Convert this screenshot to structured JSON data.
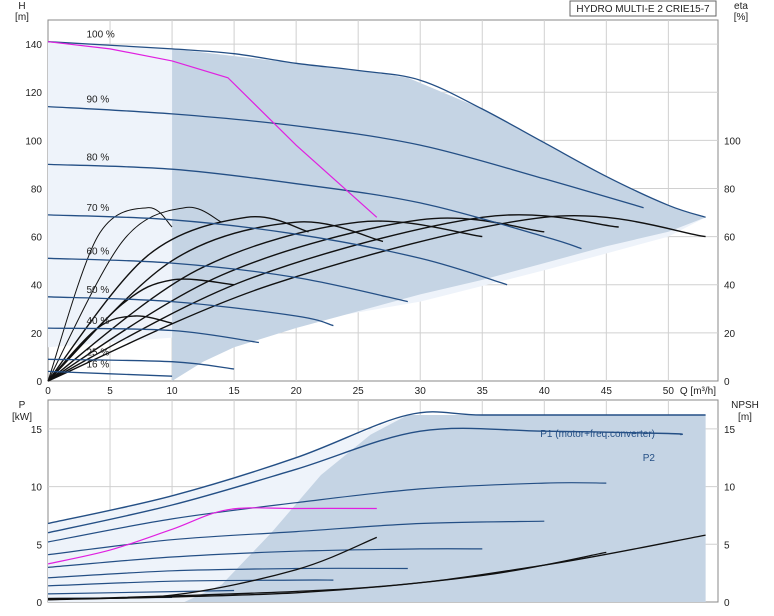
{
  "chart_data": [
    {
      "type": "line",
      "title": "HYDRO MULTI-E 2 CRIE15-7",
      "xlabel": "Q [m³/h]",
      "ylabel": "H",
      "ylabel_unit": "[m]",
      "y2label": "eta",
      "y2label_unit": "[%]",
      "xlim": [
        0,
        54
      ],
      "ylim": [
        0,
        150
      ],
      "y2lim": [
        0,
        150
      ],
      "x_ticks": [
        "0",
        "5",
        "10",
        "15",
        "20",
        "25",
        "30",
        "35",
        "40",
        "45",
        "50"
      ],
      "y_ticks": [
        "0",
        "20",
        "40",
        "60",
        "80",
        "100",
        "120",
        "140"
      ],
      "y2_ticks": [
        "0",
        "20",
        "40",
        "60",
        "80",
        "100"
      ],
      "grid": true,
      "speed_labels": [
        "100 %",
        "90 %",
        "80 %",
        "70 %",
        "60 %",
        "50 %",
        "40 %",
        "25 %",
        "16 %"
      ],
      "series": [
        {
          "name": "100 %",
          "x": [
            0,
            10,
            15,
            20,
            25,
            30,
            35,
            40,
            45,
            50,
            53
          ],
          "y": [
            141,
            138,
            136,
            132,
            129,
            125,
            113,
            99,
            85,
            73,
            68
          ]
        },
        {
          "name": "90 %",
          "x": [
            0,
            10,
            20,
            30,
            40,
            48
          ],
          "y": [
            114,
            111,
            106,
            98,
            84,
            72
          ]
        },
        {
          "name": "80 %",
          "x": [
            0,
            10,
            20,
            30,
            40,
            43
          ],
          "y": [
            90,
            88,
            82,
            74,
            60,
            55
          ]
        },
        {
          "name": "70 %",
          "x": [
            0,
            10,
            20,
            30,
            37
          ],
          "y": [
            69,
            67,
            61,
            51,
            40
          ]
        },
        {
          "name": "60 %",
          "x": [
            0,
            10,
            20,
            29
          ],
          "y": [
            51,
            49,
            43,
            33
          ]
        },
        {
          "name": "50 %",
          "x": [
            0,
            10,
            20,
            23
          ],
          "y": [
            35,
            33,
            27,
            23
          ]
        },
        {
          "name": "40 %",
          "x": [
            0,
            10,
            17
          ],
          "y": [
            22,
            21,
            16
          ]
        },
        {
          "name": "25 %",
          "x": [
            0,
            10,
            15
          ],
          "y": [
            9,
            8,
            5
          ]
        },
        {
          "name": "16 %",
          "x": [
            0,
            10
          ],
          "y": [
            4,
            2
          ]
        }
      ],
      "duty_line": {
        "x": [
          0,
          5,
          10,
          14.5,
          20,
          26.5
        ],
        "y": [
          141,
          138,
          133,
          126,
          98,
          68
        ]
      },
      "eta_curves": [
        {
          "x": [
            0,
            4,
            8,
            10
          ],
          "y": [
            0,
            60,
            72,
            64
          ]
        },
        {
          "x": [
            0,
            6,
            11,
            14
          ],
          "y": [
            0,
            58,
            72,
            66
          ]
        },
        {
          "x": [
            0,
            8,
            16,
            21
          ],
          "y": [
            0,
            52,
            68,
            62
          ]
        },
        {
          "x": [
            0,
            10,
            20,
            27
          ],
          "y": [
            0,
            50,
            66,
            58
          ]
        },
        {
          "x": [
            0,
            12,
            25,
            35
          ],
          "y": [
            0,
            46,
            66,
            60
          ]
        },
        {
          "x": [
            0,
            14,
            30,
            40
          ],
          "y": [
            0,
            44,
            67,
            62
          ]
        },
        {
          "x": [
            0,
            16,
            35,
            46
          ],
          "y": [
            0,
            42,
            68,
            64
          ]
        },
        {
          "x": [
            0,
            18,
            40,
            53
          ],
          "y": [
            0,
            40,
            68,
            60
          ]
        },
        {
          "x": [
            0,
            6,
            10,
            15
          ],
          "y": [
            0,
            32,
            42,
            40
          ]
        },
        {
          "x": [
            0,
            4,
            7,
            10
          ],
          "y": [
            0,
            22,
            27,
            24
          ]
        }
      ],
      "region_color": "#c5d4e4",
      "curve_color": "#244f85",
      "duty_color": "#e020e0"
    },
    {
      "type": "line",
      "xlabel": "",
      "ylabel": "P",
      "ylabel_unit": "[kW]",
      "y2label": "NPSH",
      "y2label_unit": "[m]",
      "xlim": [
        0,
        54
      ],
      "ylim": [
        0,
        17.5
      ],
      "y2lim": [
        0,
        17.5
      ],
      "y_ticks": [
        "0",
        "5",
        "10",
        "15"
      ],
      "y2_ticks": [
        "0",
        "5",
        "10",
        "15"
      ],
      "grid": true,
      "series_labels": [
        "P1 (motor+freq.converter)",
        "P2"
      ],
      "series": [
        {
          "name": "P1 (motor+freq.converter)",
          "x": [
            0,
            10,
            20,
            29,
            35,
            45,
            53
          ],
          "y": [
            6.8,
            9.2,
            12.5,
            16.2,
            16.2,
            16.2,
            16.2
          ]
        },
        {
          "name": "P2",
          "x": [
            0,
            10,
            20,
            30,
            40,
            50,
            51
          ],
          "y": [
            6.0,
            8.4,
            11.5,
            14.8,
            14.8,
            14.6,
            14.5
          ]
        }
      ],
      "power_curves": [
        {
          "x": [
            0,
            10,
            20,
            30,
            40,
            45
          ],
          "y": [
            5.2,
            7.2,
            8.6,
            9.8,
            10.3,
            10.3
          ]
        },
        {
          "x": [
            0,
            10,
            20,
            30,
            40
          ],
          "y": [
            4.1,
            5.4,
            6.1,
            6.8,
            7.0
          ]
        },
        {
          "x": [
            0,
            10,
            20,
            30,
            35
          ],
          "y": [
            3.0,
            3.9,
            4.4,
            4.6,
            4.6
          ]
        },
        {
          "x": [
            0,
            10,
            20,
            29
          ],
          "y": [
            2.1,
            2.7,
            2.9,
            2.9
          ]
        },
        {
          "x": [
            0,
            10,
            20,
            23
          ],
          "y": [
            1.4,
            1.8,
            1.9,
            1.9
          ]
        },
        {
          "x": [
            0,
            10,
            15
          ],
          "y": [
            0.7,
            0.9,
            1.0
          ]
        },
        {
          "x": [
            0,
            10
          ],
          "y": [
            0.3,
            0.4
          ]
        }
      ],
      "duty_power": {
        "x": [
          0,
          5,
          10,
          14.5,
          20,
          26.5
        ],
        "y": [
          3.3,
          4.5,
          6.3,
          8.0,
          8.1,
          8.1
        ]
      },
      "npsh_curves": [
        {
          "x": [
            0,
            10,
            20,
            26.5
          ],
          "y": [
            0.3,
            0.6,
            2.8,
            5.6
          ]
        },
        {
          "x": [
            0,
            20,
            35,
            45
          ],
          "y": [
            0.2,
            0.8,
            2.3,
            4.3
          ]
        },
        {
          "x": [
            0,
            25,
            40,
            53
          ],
          "y": [
            0.2,
            1.2,
            3.2,
            5.8
          ]
        }
      ]
    }
  ]
}
